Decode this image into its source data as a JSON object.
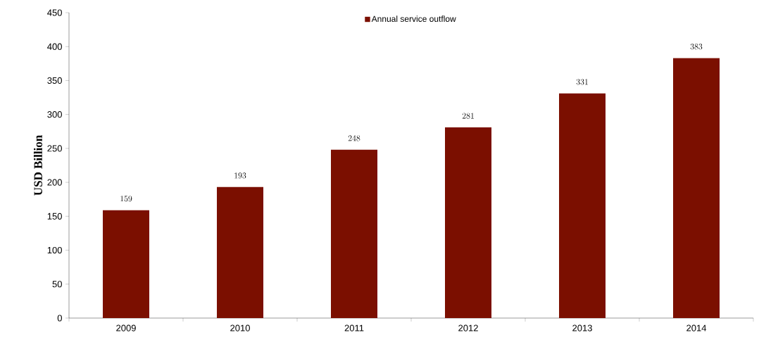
{
  "chart_data": {
    "type": "bar",
    "ylabel": "USD Billion",
    "categories": [
      "2009",
      "2010",
      "2011",
      "2012",
      "2013",
      "2014"
    ],
    "series": [
      {
        "name": "Annual service outflow",
        "color": "#7b0f00",
        "values": [
          159,
          193,
          248,
          281,
          331,
          383
        ]
      }
    ],
    "ylim": [
      0,
      450
    ],
    "yticks": [
      0,
      50,
      100,
      150,
      200,
      250,
      300,
      350,
      400,
      450
    ],
    "data_labels": true,
    "legend": "top",
    "grid": false
  }
}
